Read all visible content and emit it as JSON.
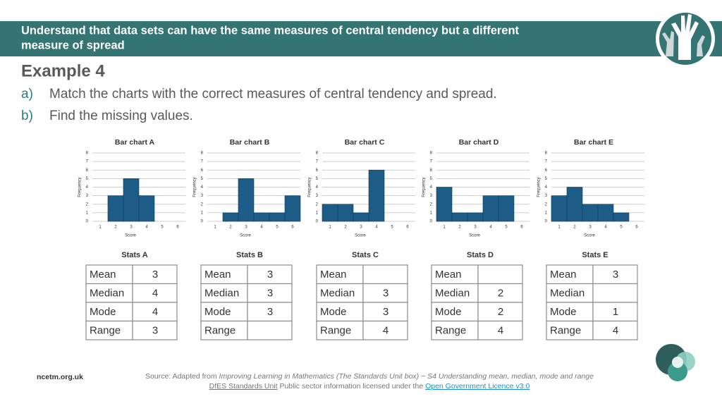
{
  "header": {
    "title_line1": "Understand that data sets can have the same measures of central tendency but a different",
    "title_line2": "measure of spread"
  },
  "example": "Example 4",
  "questions": [
    {
      "label": "a)",
      "text": "Match the charts with the correct measures of central tendency and spread."
    },
    {
      "label": "b)",
      "text": "Find the missing values."
    }
  ],
  "chart_data": [
    {
      "type": "bar",
      "title": "Bar chart A",
      "x_label": "Score",
      "y_label": "Frequency",
      "categories": [
        "1",
        "2",
        "3",
        "4",
        "5",
        "6"
      ],
      "values": [
        0,
        3,
        5,
        3,
        0,
        0
      ],
      "color": "#1d5c87",
      "ylim": [
        0,
        8
      ],
      "yticks": [
        0,
        1,
        2,
        3,
        4,
        5,
        6,
        7,
        8
      ],
      "grid": true
    },
    {
      "type": "bar",
      "title": "Bar chart B",
      "x_label": "Score",
      "y_label": "Frequency",
      "categories": [
        "1",
        "2",
        "3",
        "4",
        "5",
        "6"
      ],
      "values": [
        0,
        1,
        5,
        1,
        1,
        3
      ],
      "color": "#1d5c87",
      "ylim": [
        0,
        8
      ],
      "yticks": [
        0,
        1,
        2,
        3,
        4,
        5,
        6,
        7,
        8
      ],
      "grid": true
    },
    {
      "type": "bar",
      "title": "Bar chart C",
      "x_label": "Score",
      "y_label": "Frequency",
      "categories": [
        "1",
        "2",
        "3",
        "4",
        "5",
        "6"
      ],
      "values": [
        2,
        2,
        1,
        6,
        0,
        0
      ],
      "color": "#1d5c87",
      "ylim": [
        0,
        8
      ],
      "yticks": [
        0,
        1,
        2,
        3,
        4,
        5,
        6,
        7,
        8
      ],
      "grid": true
    },
    {
      "type": "bar",
      "title": "Bar chart D",
      "x_label": "Score",
      "y_label": "Frequency",
      "categories": [
        "1",
        "2",
        "3",
        "4",
        "5",
        "6"
      ],
      "values": [
        4,
        1,
        1,
        3,
        3,
        0
      ],
      "color": "#1d5c87",
      "ylim": [
        0,
        8
      ],
      "yticks": [
        0,
        1,
        2,
        3,
        4,
        5,
        6,
        7,
        8
      ],
      "grid": true
    },
    {
      "type": "bar",
      "title": "Bar chart E",
      "x_label": "Score",
      "y_label": "Frequency",
      "categories": [
        "1",
        "2",
        "3",
        "4",
        "5",
        "6"
      ],
      "values": [
        3,
        4,
        2,
        2,
        1,
        0
      ],
      "color": "#1d5c87",
      "ylim": [
        0,
        8
      ],
      "yticks": [
        0,
        1,
        2,
        3,
        4,
        5,
        6,
        7,
        8
      ],
      "grid": true
    }
  ],
  "stats": [
    {
      "title": "Stats A",
      "rows": [
        [
          "Mean",
          "3"
        ],
        [
          "Median",
          "4"
        ],
        [
          "Mode",
          "4"
        ],
        [
          "Range",
          "3"
        ]
      ]
    },
    {
      "title": "Stats B",
      "rows": [
        [
          "Mean",
          "3"
        ],
        [
          "Median",
          "3"
        ],
        [
          "Mode",
          "3"
        ],
        [
          "Range"
        ]
      ]
    },
    {
      "title": "Stats C",
      "rows": [
        [
          "Mean"
        ],
        [
          "Median",
          "3"
        ],
        [
          "Mode",
          "3"
        ],
        [
          "Range",
          "4"
        ]
      ]
    },
    {
      "title": "Stats D",
      "rows": [
        [
          "Mean"
        ],
        [
          "Median",
          "2"
        ],
        [
          "Mode",
          "2"
        ],
        [
          "Range",
          "4"
        ]
      ]
    },
    {
      "title": "Stats E",
      "rows": [
        [
          "Mean",
          "3"
        ],
        [
          "Median"
        ],
        [
          "Mode",
          "1"
        ],
        [
          "Range",
          "4"
        ]
      ]
    }
  ],
  "footer": {
    "site": "ncetm.org.uk",
    "source_prefix": "Source: Adapted from ",
    "source_title": "Improving Learning in Mathematics (The Standards Unit box) − S4 Understanding mean, median, mode and range",
    "link1": "DfES Standards Unit",
    "licence_text": " Public sector information licensed under the ",
    "link2": "Open Government Licence v3.0"
  }
}
